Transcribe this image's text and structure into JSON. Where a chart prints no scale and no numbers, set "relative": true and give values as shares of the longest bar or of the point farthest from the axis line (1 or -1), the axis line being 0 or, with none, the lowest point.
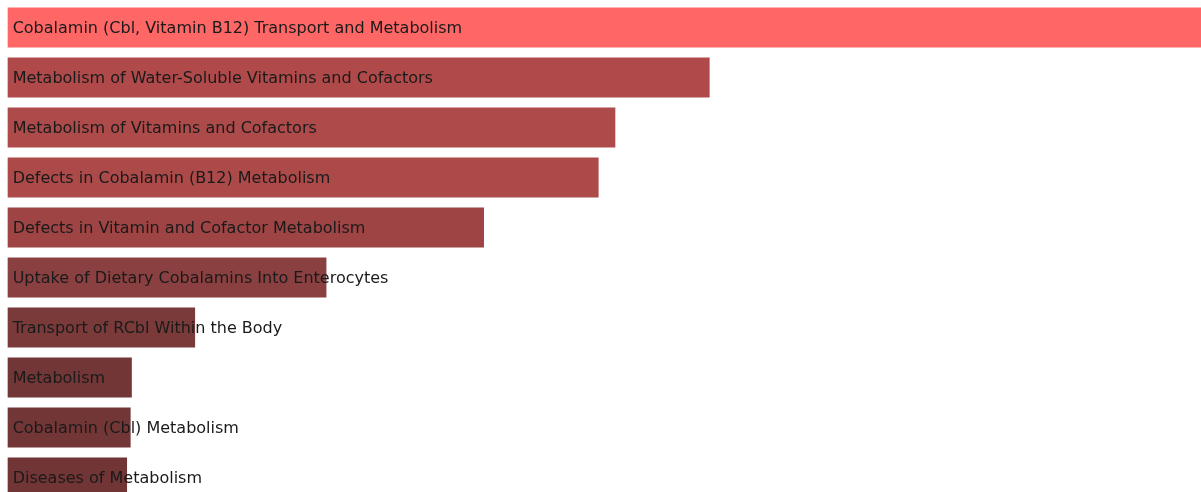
{
  "chart_data": {
    "type": "bar",
    "orientation": "horizontal",
    "relative": true,
    "data_labels": false,
    "categories": [
      "Cobalamin (Cbl, Vitamin B12) Transport and Metabolism",
      "Metabolism of Water-Soluble Vitamins and Cofactors",
      "Metabolism of Vitamins and Cofactors",
      "Defects in Cobalamin (B12) Metabolism",
      "Defects in Vitamin and Cofactor Metabolism",
      "Uptake of Dietary Cobalamins Into Enterocytes",
      "Transport of RCbl Within the Body",
      "Metabolism",
      "Cobalamin (Cbl) Metabolism",
      "Diseases of Metabolism"
    ],
    "values": [
      1,
      0.588,
      0.509,
      0.495,
      0.399,
      0.267,
      0.157,
      0.104,
      0.103,
      0.1
    ],
    "colors": [
      "#ff6666",
      "#b04a4a",
      "#ad4a4a",
      "#ac4a4a",
      "#9e4444",
      "#8a4040",
      "#7a3a3a",
      "#733636",
      "#733636",
      "#723535"
    ]
  }
}
